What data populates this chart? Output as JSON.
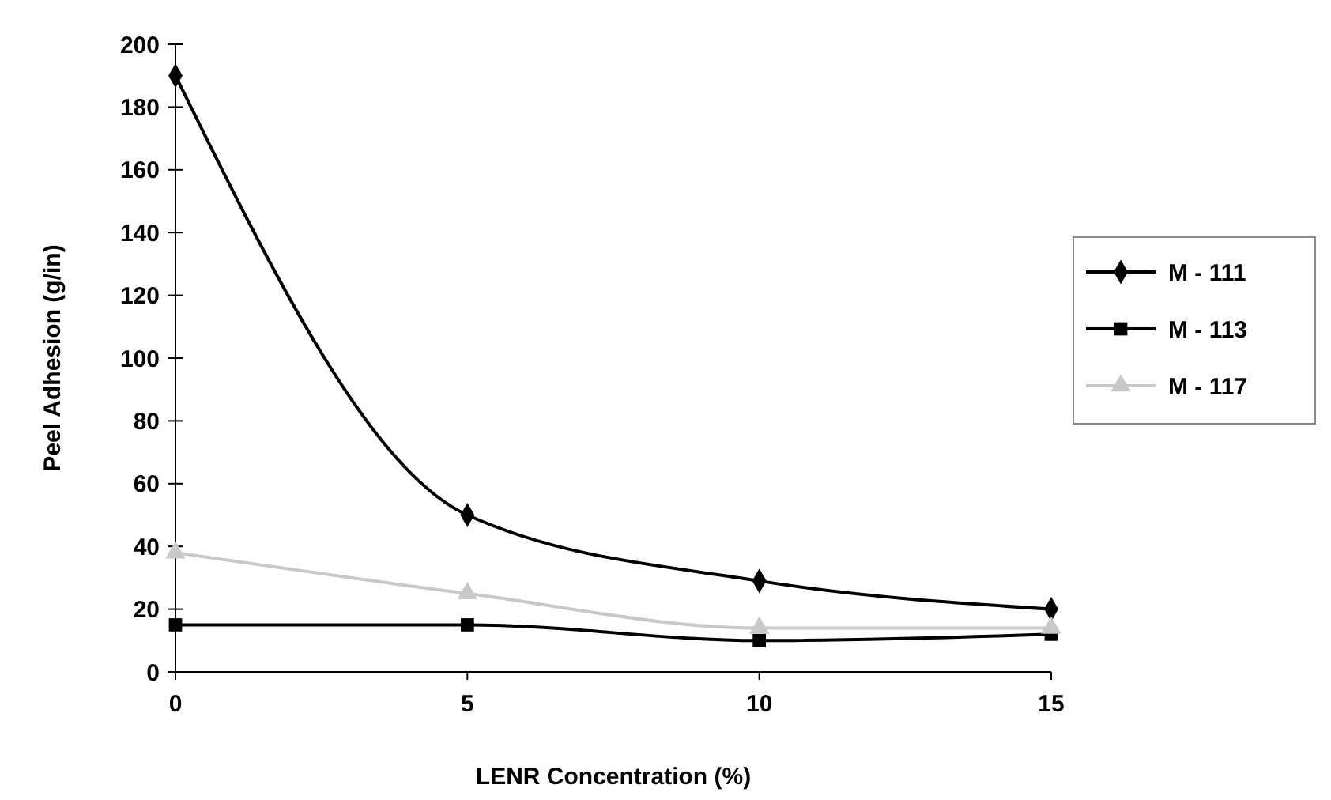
{
  "chart_data": {
    "type": "line",
    "xlabel": "LENR Concentration (%)",
    "ylabel": "Peel Adhesion (g/in)",
    "x": [
      0,
      5,
      10,
      15
    ],
    "xlim": [
      0,
      15
    ],
    "xticks": [
      0,
      5,
      10,
      15
    ],
    "ylim": [
      0,
      200
    ],
    "yticks": [
      0,
      20,
      40,
      60,
      80,
      100,
      120,
      140,
      160,
      180,
      200
    ],
    "legend": "right",
    "grid": false,
    "series": [
      {
        "name": "M - 111",
        "color": "#000000",
        "marker": "diamond",
        "values": [
          190,
          50,
          29,
          20
        ]
      },
      {
        "name": "M - 113",
        "color": "#000000",
        "marker": "square",
        "values": [
          15,
          15,
          10,
          12
        ]
      },
      {
        "name": "M - 117",
        "color": "#c8c8c8",
        "marker": "triangle",
        "values": [
          38,
          25,
          14,
          14
        ]
      }
    ]
  }
}
